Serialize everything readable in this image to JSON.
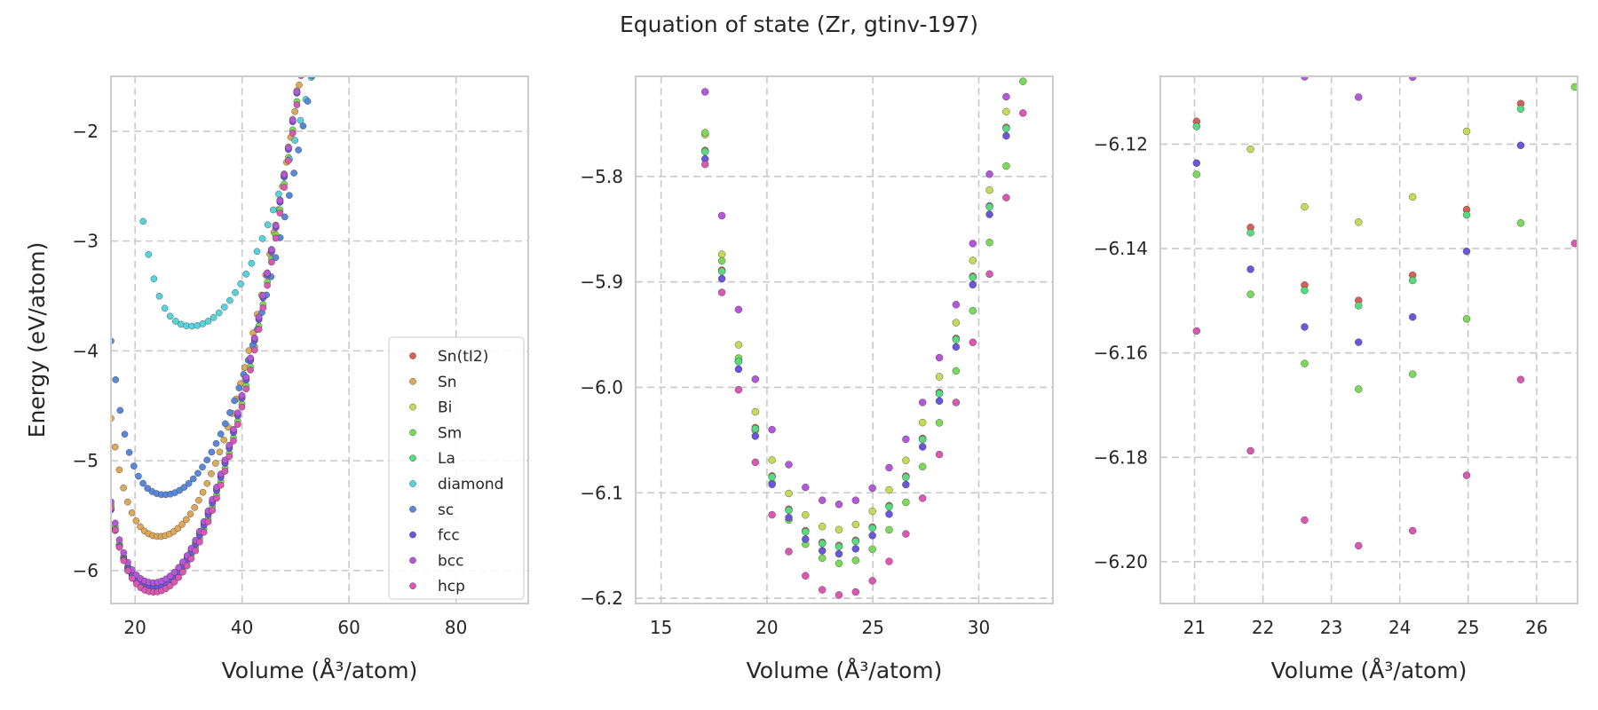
{
  "figure": {
    "title": "Equation of state (Zr, gtinv-197)"
  },
  "chart_data": [
    {
      "type": "scatter",
      "xlabel": "Volume (Å³/atom)",
      "ylabel": "Energy (eV/atom)",
      "xlim": [
        15.5,
        93.5
      ],
      "ylim": [
        -6.3,
        -1.5
      ],
      "xticks": [
        20,
        40,
        60,
        80
      ],
      "yticks": [
        -6,
        -5,
        -4,
        -3,
        -2
      ],
      "grid": true,
      "legend": {
        "placement": "bottom-right",
        "entries": [
          "Sn(tI2)",
          "Sn",
          "Bi",
          "Sm",
          "La",
          "diamond",
          "sc",
          "fcc",
          "bcc",
          "hcp"
        ]
      },
      "series": [
        {
          "name": "Sn(tI2)",
          "color": "#db5f57",
          "curve": {
            "v0": 23.3,
            "e0": -6.15,
            "b": 0.0062,
            "vmin": 15.5,
            "vmax": 70,
            "n": 70
          }
        },
        {
          "name": "Sn",
          "color": "#dba957",
          "curve": {
            "v0": 24.5,
            "e0": -5.69,
            "b": 0.006,
            "vmin": 15.5,
            "vmax": 71,
            "n": 72
          }
        },
        {
          "name": "Bi",
          "color": "#c3db57",
          "curve": {
            "v0": 23.3,
            "e0": -6.135,
            "b": 0.0062,
            "vmin": 15.5,
            "vmax": 70,
            "n": 70
          }
        },
        {
          "name": "Sm",
          "color": "#79db57",
          "curve": {
            "v0": 23.5,
            "e0": -6.167,
            "b": 0.0062,
            "vmin": 15.5,
            "vmax": 70,
            "n": 70
          }
        },
        {
          "name": "La",
          "color": "#57db80",
          "curve": {
            "v0": 23.3,
            "e0": -6.151,
            "b": 0.0062,
            "vmin": 15.5,
            "vmax": 70,
            "n": 70
          }
        },
        {
          "name": "diamond",
          "color": "#57d3db",
          "curve": {
            "v0": 30.5,
            "e0": -3.775,
            "b": 0.0045,
            "vmin": 21.5,
            "vmax": 93.5,
            "n": 72
          }
        },
        {
          "name": "sc",
          "color": "#5788db",
          "curve": {
            "v0": 25.5,
            "e0": -5.31,
            "b": 0.005,
            "vmin": 15.5,
            "vmax": 74.5,
            "n": 70
          }
        },
        {
          "name": "fcc",
          "color": "#6957db",
          "curve": {
            "v0": 23.3,
            "e0": -6.158,
            "b": 0.0062,
            "vmin": 15.5,
            "vmax": 70,
            "n": 70
          }
        },
        {
          "name": "bcc",
          "color": "#b657db",
          "curve": {
            "v0": 23.4,
            "e0": -6.111,
            "b": 0.0062,
            "vmin": 15.5,
            "vmax": 70,
            "n": 70
          }
        },
        {
          "name": "hcp",
          "color": "#db57b2",
          "curve": {
            "v0": 23.5,
            "e0": -6.197,
            "b": 0.0062,
            "vmin": 15.5,
            "vmax": 70,
            "n": 70
          }
        }
      ]
    },
    {
      "type": "scatter",
      "xlabel": "Volume (Å³/atom)",
      "ylabel": "",
      "xlim": [
        13.8,
        33.5
      ],
      "ylim": [
        -6.205,
        -5.705
      ],
      "xticks": [
        15,
        20,
        25,
        30
      ],
      "yticks": [
        -6.2,
        -6.1,
        -6.0,
        -5.9,
        -5.8
      ],
      "grid": true,
      "series_ref": "panel 1 series, zoomed"
    },
    {
      "type": "scatter",
      "xlabel": "Volume (Å³/atom)",
      "ylabel": "",
      "xlim": [
        20.5,
        26.6
      ],
      "ylim": [
        -6.208,
        -6.107
      ],
      "xticks": [
        21,
        22,
        23,
        24,
        25,
        26
      ],
      "yticks": [
        -6.2,
        -6.18,
        -6.16,
        -6.14,
        -6.12
      ],
      "grid": true,
      "series_ref": "panel 1 series, zoomed"
    }
  ]
}
